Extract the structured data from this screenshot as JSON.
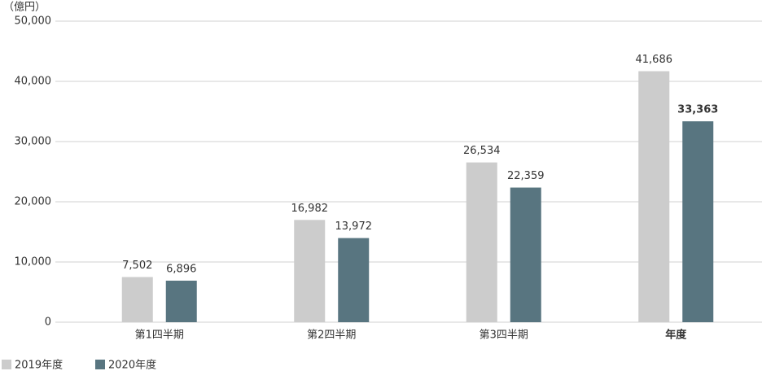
{
  "chart_data": {
    "type": "bar",
    "unit_label": "（億円）",
    "categories": [
      "第1四半期",
      "第2四半期",
      "第3四半期",
      "年度"
    ],
    "series": [
      {
        "name": "2019年度",
        "color": "#cccccc",
        "values": [
          7502,
          16982,
          26534,
          41686
        ],
        "value_labels": [
          "7,502",
          "16,982",
          "26,534",
          "41,686"
        ]
      },
      {
        "name": "2020年度",
        "color": "#587580",
        "values": [
          6896,
          13972,
          22359,
          33363
        ],
        "value_labels": [
          "6,896",
          "13,972",
          "22,359",
          "33,363"
        ]
      }
    ],
    "ylim": [
      0,
      50000
    ],
    "yticks": [
      0,
      {
        "value": 10000,
        "label": "10,000"
      },
      {
        "value": 20000,
        "label": "20,000"
      },
      {
        "value": 30000,
        "label": "30,000"
      },
      {
        "value": 40000,
        "label": "40,000"
      },
      {
        "value": 50000,
        "label": "50,000"
      }
    ],
    "grid": true,
    "legend": "bottom-left"
  }
}
